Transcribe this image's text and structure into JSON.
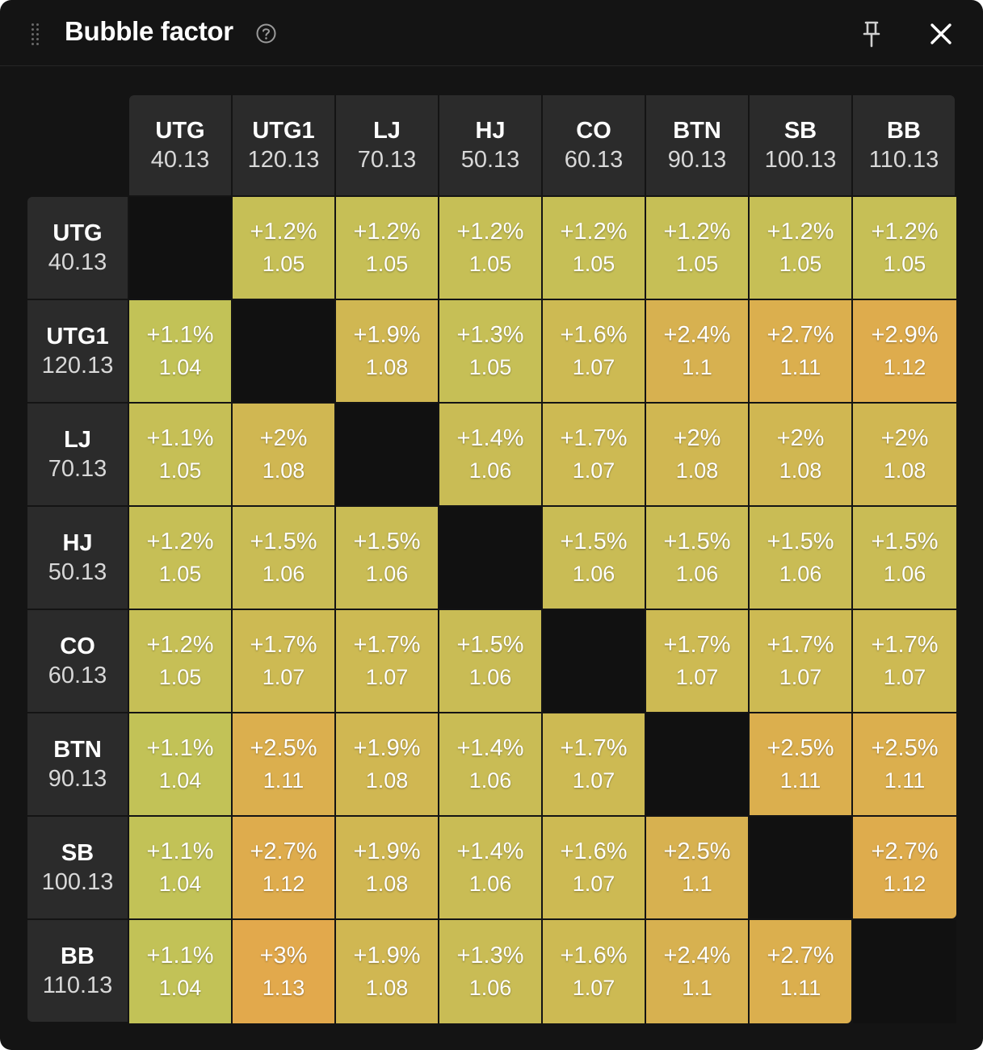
{
  "window": {
    "title": "Bubble factor",
    "icons": {
      "drag": "drag-handle-icon",
      "help": "help-circle-icon",
      "pin": "pin-icon",
      "close": "close-icon"
    }
  },
  "colors": {
    "background": "#141414",
    "header_cell": "#2b2b2b",
    "diagonal": "#111111",
    "scale_low": "#c2c257",
    "scale_high": "#e2a94c"
  },
  "positions": [
    {
      "name": "UTG",
      "stack": "40.13"
    },
    {
      "name": "UTG1",
      "stack": "120.13"
    },
    {
      "name": "LJ",
      "stack": "70.13"
    },
    {
      "name": "HJ",
      "stack": "50.13"
    },
    {
      "name": "CO",
      "stack": "60.13"
    },
    {
      "name": "BTN",
      "stack": "90.13"
    },
    {
      "name": "SB",
      "stack": "100.13"
    },
    {
      "name": "BB",
      "stack": "110.13"
    }
  ],
  "matrix": [
    [
      null,
      {
        "pct": "+1.2%",
        "bf": "1.05"
      },
      {
        "pct": "+1.2%",
        "bf": "1.05"
      },
      {
        "pct": "+1.2%",
        "bf": "1.05"
      },
      {
        "pct": "+1.2%",
        "bf": "1.05"
      },
      {
        "pct": "+1.2%",
        "bf": "1.05"
      },
      {
        "pct": "+1.2%",
        "bf": "1.05"
      },
      {
        "pct": "+1.2%",
        "bf": "1.05"
      }
    ],
    [
      {
        "pct": "+1.1%",
        "bf": "1.04"
      },
      null,
      {
        "pct": "+1.9%",
        "bf": "1.08"
      },
      {
        "pct": "+1.3%",
        "bf": "1.05"
      },
      {
        "pct": "+1.6%",
        "bf": "1.07"
      },
      {
        "pct": "+2.4%",
        "bf": "1.1"
      },
      {
        "pct": "+2.7%",
        "bf": "1.11"
      },
      {
        "pct": "+2.9%",
        "bf": "1.12"
      }
    ],
    [
      {
        "pct": "+1.1%",
        "bf": "1.05"
      },
      {
        "pct": "+2%",
        "bf": "1.08"
      },
      null,
      {
        "pct": "+1.4%",
        "bf": "1.06"
      },
      {
        "pct": "+1.7%",
        "bf": "1.07"
      },
      {
        "pct": "+2%",
        "bf": "1.08"
      },
      {
        "pct": "+2%",
        "bf": "1.08"
      },
      {
        "pct": "+2%",
        "bf": "1.08"
      }
    ],
    [
      {
        "pct": "+1.2%",
        "bf": "1.05"
      },
      {
        "pct": "+1.5%",
        "bf": "1.06"
      },
      {
        "pct": "+1.5%",
        "bf": "1.06"
      },
      null,
      {
        "pct": "+1.5%",
        "bf": "1.06"
      },
      {
        "pct": "+1.5%",
        "bf": "1.06"
      },
      {
        "pct": "+1.5%",
        "bf": "1.06"
      },
      {
        "pct": "+1.5%",
        "bf": "1.06"
      }
    ],
    [
      {
        "pct": "+1.2%",
        "bf": "1.05"
      },
      {
        "pct": "+1.7%",
        "bf": "1.07"
      },
      {
        "pct": "+1.7%",
        "bf": "1.07"
      },
      {
        "pct": "+1.5%",
        "bf": "1.06"
      },
      null,
      {
        "pct": "+1.7%",
        "bf": "1.07"
      },
      {
        "pct": "+1.7%",
        "bf": "1.07"
      },
      {
        "pct": "+1.7%",
        "bf": "1.07"
      }
    ],
    [
      {
        "pct": "+1.1%",
        "bf": "1.04"
      },
      {
        "pct": "+2.5%",
        "bf": "1.11"
      },
      {
        "pct": "+1.9%",
        "bf": "1.08"
      },
      {
        "pct": "+1.4%",
        "bf": "1.06"
      },
      {
        "pct": "+1.7%",
        "bf": "1.07"
      },
      null,
      {
        "pct": "+2.5%",
        "bf": "1.11"
      },
      {
        "pct": "+2.5%",
        "bf": "1.11"
      }
    ],
    [
      {
        "pct": "+1.1%",
        "bf": "1.04"
      },
      {
        "pct": "+2.7%",
        "bf": "1.12"
      },
      {
        "pct": "+1.9%",
        "bf": "1.08"
      },
      {
        "pct": "+1.4%",
        "bf": "1.06"
      },
      {
        "pct": "+1.6%",
        "bf": "1.07"
      },
      {
        "pct": "+2.5%",
        "bf": "1.1"
      },
      null,
      {
        "pct": "+2.7%",
        "bf": "1.12"
      }
    ],
    [
      {
        "pct": "+1.1%",
        "bf": "1.04"
      },
      {
        "pct": "+3%",
        "bf": "1.13"
      },
      {
        "pct": "+1.9%",
        "bf": "1.08"
      },
      {
        "pct": "+1.3%",
        "bf": "1.06"
      },
      {
        "pct": "+1.6%",
        "bf": "1.07"
      },
      {
        "pct": "+2.4%",
        "bf": "1.1"
      },
      {
        "pct": "+2.7%",
        "bf": "1.11"
      },
      null
    ]
  ]
}
